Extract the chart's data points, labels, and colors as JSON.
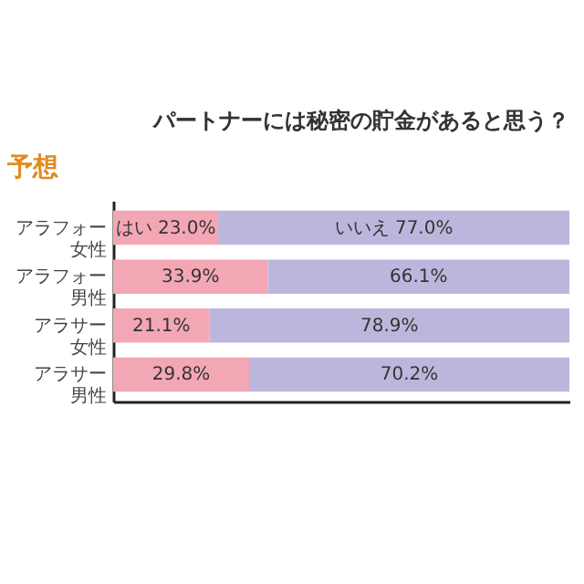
{
  "chart_data": {
    "type": "bar",
    "orientation": "horizontal",
    "stacked": true,
    "title": "パートナーには秘密の貯金があると思う？",
    "annotations": [
      "予想"
    ],
    "categories": [
      "アラフォー女性",
      "アラフォー男性",
      "アラサー女性",
      "アラサー男性"
    ],
    "series": [
      {
        "name": "はい",
        "color": "#f3a7b4",
        "values": [
          23.0,
          33.9,
          21.1,
          29.8
        ],
        "value_labels": [
          "23.0%",
          "33.9%",
          "21.1%",
          "29.8%"
        ]
      },
      {
        "name": "いいえ",
        "color": "#bdb6dc",
        "values": [
          77.0,
          66.1,
          78.9,
          70.2
        ],
        "value_labels": [
          "77.0%",
          "66.1%",
          "78.9%",
          "70.2%"
        ]
      }
    ],
    "xlim": [
      0,
      100
    ],
    "tick_labels": "y"
  }
}
